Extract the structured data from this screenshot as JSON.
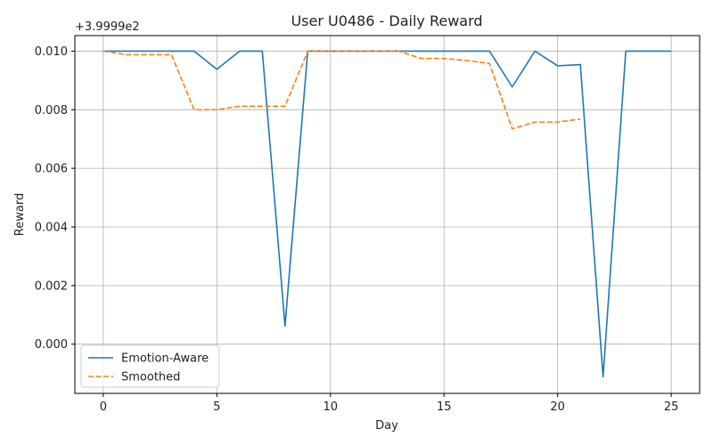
{
  "chart_data": {
    "type": "line",
    "title": "User U0486 - Daily Reward",
    "xlabel": "Day",
    "ylabel": "Reward",
    "y_offset_label": "+3.9999e2",
    "xlim": [
      -1.25,
      26.25
    ],
    "ylim": [
      -0.00168,
      0.01053
    ],
    "x_ticks": [
      0,
      5,
      10,
      15,
      20,
      25
    ],
    "y_ticks": [
      0.0,
      0.002,
      0.004,
      0.006,
      0.008,
      0.01
    ],
    "y_tick_labels": [
      "0.000",
      "0.002",
      "0.004",
      "0.006",
      "0.008",
      "0.010"
    ],
    "grid": true,
    "legend_position": "lower-left",
    "series": [
      {
        "name": "Emotion-Aware",
        "color": "#1f77b4",
        "style": "solid",
        "x": [
          0,
          1,
          2,
          3,
          4,
          5,
          6,
          7,
          8,
          9,
          10,
          11,
          12,
          13,
          14,
          15,
          16,
          17,
          18,
          19,
          20,
          21,
          22,
          23,
          24,
          25
        ],
        "values": [
          0.01,
          0.01,
          0.01,
          0.01,
          0.01,
          0.00938,
          0.01,
          0.01,
          0.00062,
          0.01,
          0.01,
          0.01,
          0.01,
          0.01,
          0.01,
          0.01,
          0.01,
          0.01,
          0.00878,
          0.01,
          0.0095,
          0.00954,
          -0.00112,
          0.01,
          0.01,
          0.01
        ]
      },
      {
        "name": "Smoothed",
        "color": "#ff7f0e",
        "style": "dashed",
        "x": [
          0,
          1,
          2,
          3,
          4,
          5,
          6,
          7,
          8,
          9,
          10,
          11,
          12,
          13,
          14,
          15,
          16,
          17,
          18,
          19,
          20,
          21
        ],
        "values": [
          0.01,
          0.00988,
          0.00988,
          0.00988,
          0.008,
          0.008,
          0.00812,
          0.00812,
          0.00812,
          0.01,
          0.01,
          0.01,
          0.01,
          0.01,
          0.00975,
          0.00975,
          0.00968,
          0.00958,
          0.00735,
          0.00758,
          0.00758,
          0.00768
        ]
      }
    ]
  }
}
